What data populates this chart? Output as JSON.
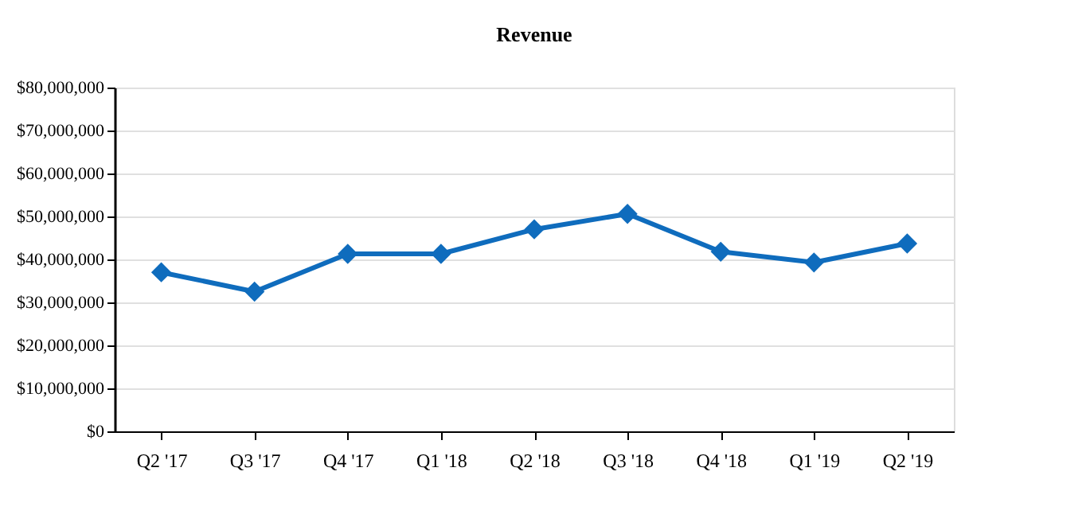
{
  "chart_data": {
    "type": "line",
    "title": "Revenue",
    "categories": [
      "Q2 '17",
      "Q3 '17",
      "Q4 '17",
      "Q1 '18",
      "Q2 '18",
      "Q3 '18",
      "Q4 '18",
      "Q1 '19",
      "Q2 '19"
    ],
    "series": [
      {
        "color": "#0f6cbd",
        "values": [
          37000000,
          32500000,
          41300000,
          41300000,
          47000000,
          50600000,
          41800000,
          39300000,
          43700000
        ]
      }
    ],
    "ylim": [
      0,
      80000000
    ],
    "yticks": [
      {
        "value": 0,
        "label": "$0"
      },
      {
        "value": 10000000,
        "label": "$10,000,000"
      },
      {
        "value": 20000000,
        "label": "$20,000,000"
      },
      {
        "value": 30000000,
        "label": "$30,000,000"
      },
      {
        "value": 40000000,
        "label": "$40,000,000"
      },
      {
        "value": 50000000,
        "label": "$50,000,000"
      },
      {
        "value": 60000000,
        "label": "$60,000,000"
      },
      {
        "value": 70000000,
        "label": "$70,000,000"
      },
      {
        "value": 80000000,
        "label": "$80,000,000"
      }
    ],
    "grid": "y",
    "marker": "diamond",
    "line_style": "solid"
  }
}
